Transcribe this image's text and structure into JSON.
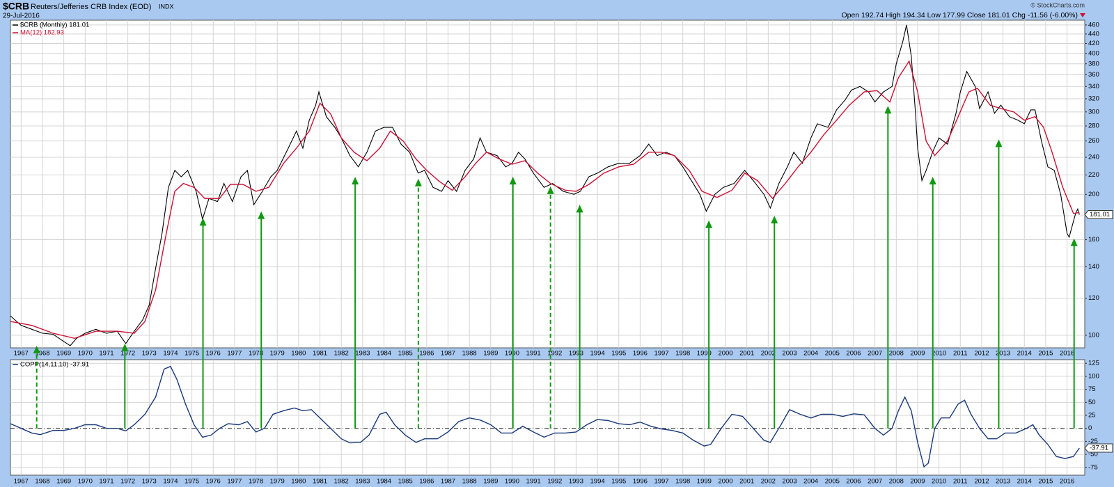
{
  "header": {
    "symbol": "$CRB",
    "name": "Reuters/Jefferies CRB Index (EOD)",
    "exchange": "INDX",
    "date": "29-Jul-2016",
    "copyright": "© StockCharts.com",
    "quote": "Open 192.74 High 194.34 Low 177.99 Close 181.01 Chg -11.56 (-6.00%)"
  },
  "chart_data": [
    {
      "type": "line",
      "log": true,
      "grid": true,
      "xlim": [
        1966.5,
        2016.83
      ],
      "ylim": [
        94,
        471
      ],
      "xticks": [
        1967,
        1968,
        1969,
        1970,
        1971,
        1972,
        1973,
        1974,
        1975,
        1976,
        1977,
        1978,
        1979,
        1980,
        1981,
        1982,
        1983,
        1984,
        1985,
        1986,
        1987,
        1988,
        1989,
        1990,
        1991,
        1992,
        1993,
        1994,
        1995,
        1996,
        1997,
        1998,
        1999,
        2000,
        2001,
        2002,
        2003,
        2004,
        2005,
        2006,
        2007,
        2008,
        2009,
        2010,
        2011,
        2012,
        2013,
        2014,
        2015,
        2016
      ],
      "yticks": [
        100,
        120,
        140,
        160,
        180,
        200,
        220,
        240,
        260,
        280,
        300,
        320,
        340,
        360,
        380,
        400,
        420,
        440,
        460
      ],
      "last_label": "181.01",
      "last_value": 181.01,
      "series": [
        {
          "name": "$CRB (Monthly) 181.01",
          "color": "#000000",
          "x": [
            1966.5,
            1967.0,
            1967.5,
            1968.0,
            1968.5,
            1969.0,
            1969.3,
            1969.6,
            1970.0,
            1970.5,
            1971.0,
            1971.5,
            1971.9,
            1972.3,
            1972.7,
            1973.0,
            1973.3,
            1973.6,
            1973.9,
            1974.2,
            1974.5,
            1974.8,
            1975.2,
            1975.5,
            1975.8,
            1976.2,
            1976.5,
            1976.9,
            1977.3,
            1977.6,
            1977.9,
            1978.3,
            1978.7,
            1979.0,
            1979.5,
            1979.9,
            1980.2,
            1980.5,
            1980.8,
            1980.95,
            1981.3,
            1981.7,
            1982.0,
            1982.4,
            1982.8,
            1983.2,
            1983.6,
            1984.0,
            1984.4,
            1984.8,
            1985.2,
            1985.6,
            1985.9,
            1986.3,
            1986.7,
            1987.0,
            1987.4,
            1987.8,
            1988.2,
            1988.5,
            1988.8,
            1989.3,
            1989.7,
            1990.0,
            1990.3,
            1990.6,
            1991.0,
            1991.5,
            1991.9,
            1992.4,
            1992.9,
            1993.2,
            1993.6,
            1994.0,
            1994.5,
            1995.0,
            1995.5,
            1996.0,
            1996.4,
            1996.8,
            1997.2,
            1997.6,
            1998.0,
            1998.4,
            1998.8,
            1999.1,
            1999.5,
            1999.9,
            2000.4,
            2000.9,
            2001.3,
            2001.8,
            2002.1,
            2002.5,
            2002.9,
            2003.2,
            2003.6,
            2004.0,
            2004.3,
            2004.8,
            2005.2,
            2005.6,
            2005.9,
            2006.3,
            2006.7,
            2007.0,
            2007.4,
            2007.8,
            2008.0,
            2008.3,
            2008.48,
            2008.7,
            2008.9,
            2009.0,
            2009.2,
            2009.4,
            2009.7,
            2010.0,
            2010.4,
            2010.8,
            2011.0,
            2011.3,
            2011.7,
            2011.9,
            2012.3,
            2012.6,
            2012.9,
            2013.3,
            2013.7,
            2014.0,
            2014.3,
            2014.5,
            2014.8,
            2015.1,
            2015.4,
            2015.7,
            2016.0,
            2016.1,
            2016.4,
            2016.5,
            2016.58
          ],
          "values": [
            110,
            105,
            103,
            101,
            100.5,
            97,
            95,
            98.5,
            101,
            103,
            101,
            102,
            96,
            102,
            108,
            116,
            139,
            165,
            207,
            225,
            218,
            225,
            203,
            177,
            196,
            193,
            211,
            193,
            218,
            225,
            190,
            203,
            218,
            225,
            250,
            273,
            251,
            288,
            310,
            331,
            293,
            278,
            264,
            242,
            229,
            246,
            273,
            278,
            278,
            256,
            246,
            222,
            225,
            207,
            203,
            214,
            203,
            225,
            238,
            264,
            246,
            242,
            229,
            233,
            246,
            238,
            222,
            207,
            211,
            203,
            200,
            203,
            218,
            222,
            229,
            233,
            233,
            242,
            256,
            242,
            246,
            242,
            229,
            214,
            200,
            184,
            200,
            207,
            211,
            225,
            214,
            200,
            187,
            211,
            229,
            246,
            233,
            264,
            283,
            278,
            303,
            318,
            334,
            340,
            331,
            315,
            331,
            340,
            380,
            423,
            460,
            395,
            298,
            251,
            214,
            225,
            246,
            264,
            256,
            298,
            331,
            366,
            340,
            305,
            331,
            298,
            310,
            293,
            288,
            283,
            303,
            303,
            260,
            229,
            225,
            200,
            165,
            162,
            182,
            186,
            181.01
          ]
        },
        {
          "name": "MA(12) 182.93",
          "color": "#cc1133",
          "x": [
            1966.5,
            1967.5,
            1968.5,
            1969.5,
            1970.5,
            1971.5,
            1972.3,
            1972.8,
            1973.3,
            1973.8,
            1974.2,
            1974.6,
            1975.1,
            1975.6,
            1976.3,
            1976.8,
            1977.4,
            1978.0,
            1978.6,
            1979.3,
            1979.9,
            1980.5,
            1981.0,
            1981.5,
            1982.0,
            1982.6,
            1983.2,
            1983.8,
            1984.3,
            1984.9,
            1985.5,
            1986.0,
            1986.6,
            1987.2,
            1987.8,
            1988.3,
            1988.8,
            1989.4,
            1990.0,
            1990.6,
            1991.2,
            1991.8,
            1992.5,
            1993.0,
            1993.6,
            1994.3,
            1995.0,
            1995.7,
            1996.4,
            1997.0,
            1997.6,
            1998.3,
            1998.9,
            1999.6,
            2000.3,
            2000.9,
            2001.5,
            2002.2,
            2002.8,
            2003.4,
            2004.0,
            2004.6,
            2005.2,
            2005.8,
            2006.5,
            2007.1,
            2007.7,
            2008.1,
            2008.6,
            2009.0,
            2009.4,
            2009.8,
            2010.4,
            2010.9,
            2011.4,
            2011.8,
            2012.4,
            2012.9,
            2013.5,
            2014.0,
            2014.5,
            2014.9,
            2015.3,
            2015.8,
            2016.3,
            2016.58
          ],
          "values": [
            107,
            105,
            101,
            98.5,
            102,
            102,
            101,
            107,
            125,
            165,
            203,
            211,
            207,
            196,
            196,
            210,
            210,
            203,
            207,
            233,
            251,
            273,
            313,
            297,
            264,
            246,
            236,
            251,
            273,
            260,
            238,
            225,
            213,
            204,
            218,
            233,
            246,
            238,
            232,
            236,
            222,
            211,
            204,
            203,
            210,
            222,
            229,
            232,
            246,
            246,
            242,
            225,
            203,
            197,
            204,
            222,
            214,
            196,
            211,
            229,
            246,
            268,
            288,
            310,
            331,
            333,
            315,
            355,
            385,
            331,
            260,
            242,
            260,
            293,
            331,
            337,
            310,
            305,
            300,
            288,
            293,
            278,
            246,
            207,
            182,
            182.93
          ]
        }
      ],
      "arrows": [
        {
          "x": 1967.73,
          "y": 95,
          "style": "dashed"
        },
        {
          "x": 1971.86,
          "y": 96,
          "style": "solid"
        },
        {
          "x": 1975.52,
          "y": 178,
          "style": "solid"
        },
        {
          "x": 1978.25,
          "y": 184,
          "style": "solid"
        },
        {
          "x": 1982.65,
          "y": 218,
          "style": "solid"
        },
        {
          "x": 1985.61,
          "y": 216,
          "style": "dashed"
        },
        {
          "x": 1990.04,
          "y": 218,
          "style": "solid"
        },
        {
          "x": 1991.8,
          "y": 208,
          "style": "dashed"
        },
        {
          "x": 1993.17,
          "y": 190,
          "style": "solid"
        },
        {
          "x": 1999.22,
          "y": 176,
          "style": "solid"
        },
        {
          "x": 2002.29,
          "y": 180,
          "style": "solid"
        },
        {
          "x": 2007.61,
          "y": 309,
          "style": "solid"
        },
        {
          "x": 2009.71,
          "y": 218,
          "style": "solid"
        },
        {
          "x": 2012.8,
          "y": 262,
          "style": "solid"
        },
        {
          "x": 2016.33,
          "y": 161,
          "style": "solid"
        }
      ],
      "arrow_color": "#119911"
    },
    {
      "type": "line",
      "log": false,
      "grid": true,
      "xlim": [
        1966.5,
        2016.83
      ],
      "ylim": [
        -90,
        132
      ],
      "xticks": [
        1967,
        1968,
        1969,
        1970,
        1971,
        1972,
        1973,
        1974,
        1975,
        1976,
        1977,
        1978,
        1979,
        1980,
        1981,
        1982,
        1983,
        1984,
        1985,
        1986,
        1987,
        1988,
        1989,
        1990,
        1991,
        1992,
        1993,
        1994,
        1995,
        1996,
        1997,
        1998,
        1999,
        2000,
        2001,
        2002,
        2003,
        2004,
        2005,
        2006,
        2007,
        2008,
        2009,
        2010,
        2011,
        2012,
        2013,
        2014,
        2015,
        2016
      ],
      "yticks": [
        -75,
        -50,
        -25,
        0,
        25,
        50,
        75,
        100,
        125
      ],
      "last_label": "-37.91",
      "last_value": -37.91,
      "series": [
        {
          "name": "COPP(14,11,10) -37.91",
          "color": "#1a3a7a",
          "x": [
            1966.5,
            1967.0,
            1967.5,
            1967.9,
            1968.5,
            1969.0,
            1969.5,
            1970.0,
            1970.5,
            1971.0,
            1971.5,
            1971.9,
            1972.3,
            1972.8,
            1973.3,
            1973.7,
            1974.0,
            1974.3,
            1974.7,
            1975.1,
            1975.5,
            1975.9,
            1976.3,
            1976.7,
            1977.2,
            1977.6,
            1978.0,
            1978.4,
            1978.8,
            1979.3,
            1979.8,
            1980.2,
            1980.6,
            1981.0,
            1981.5,
            1982.0,
            1982.4,
            1982.9,
            1983.3,
            1983.8,
            1984.1,
            1984.5,
            1985.0,
            1985.5,
            1985.9,
            1986.5,
            1987.0,
            1987.5,
            1988.0,
            1988.5,
            1989.0,
            1989.5,
            1990.0,
            1990.5,
            1991.0,
            1991.5,
            1992.0,
            1992.5,
            1993.0,
            1993.5,
            1994.0,
            1994.5,
            1995.0,
            1995.5,
            1996.0,
            1996.5,
            1997.0,
            1997.5,
            1998.0,
            1998.5,
            1999.0,
            1999.3,
            1999.8,
            2000.3,
            2000.8,
            2001.3,
            2001.8,
            2002.1,
            2002.6,
            2003.0,
            2003.5,
            2004.0,
            2004.5,
            2005.0,
            2005.5,
            2006.0,
            2006.5,
            2007.0,
            2007.4,
            2007.8,
            2008.1,
            2008.4,
            2008.7,
            2009.0,
            2009.3,
            2009.5,
            2009.8,
            2010.1,
            2010.5,
            2010.9,
            2011.2,
            2011.5,
            2011.9,
            2012.3,
            2012.7,
            2013.1,
            2013.6,
            2014.1,
            2014.4,
            2014.7,
            2015.1,
            2015.5,
            2015.9,
            2016.3,
            2016.58
          ],
          "values": [
            9,
            0,
            -9,
            -12,
            -4,
            -4,
            0,
            7,
            7,
            0,
            0,
            -5,
            7,
            27,
            60,
            114,
            119,
            94,
            47,
            7,
            -17,
            -13,
            0,
            9,
            7,
            13,
            -7,
            0,
            27,
            34,
            39,
            34,
            36,
            20,
            0,
            -20,
            -28,
            -27,
            -13,
            27,
            31,
            7,
            -13,
            -27,
            -20,
            -20,
            -7,
            13,
            20,
            16,
            7,
            -9,
            -9,
            4,
            -7,
            -17,
            -9,
            -9,
            -7,
            7,
            17,
            15,
            9,
            7,
            12,
            4,
            -1,
            -4,
            -9,
            -23,
            -34,
            -31,
            0,
            27,
            23,
            0,
            -23,
            -27,
            7,
            36,
            27,
            20,
            27,
            27,
            23,
            28,
            26,
            0,
            -13,
            0,
            34,
            60,
            34,
            -27,
            -74,
            -67,
            0,
            20,
            20,
            47,
            54,
            27,
            0,
            -20,
            -20,
            -9,
            -9,
            0,
            7,
            -13,
            -31,
            -54,
            -58,
            -54,
            -37.91
          ]
        }
      ]
    }
  ]
}
